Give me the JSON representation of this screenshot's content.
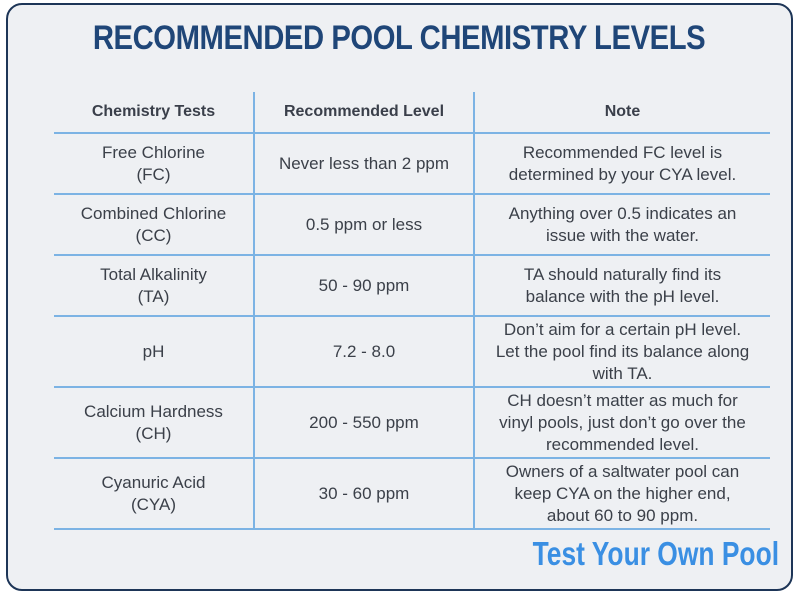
{
  "title": "RECOMMENDED POOL CHEMISTRY LEVELS",
  "columns": [
    "Chemistry Tests",
    "Recommended Level",
    "Note"
  ],
  "rows": [
    {
      "test": [
        "Free Chlorine",
        "(FC)"
      ],
      "level": "Never less than 2 ppm",
      "note": [
        "Recommended FC level is",
        "determined by your CYA level."
      ]
    },
    {
      "test": [
        "Combined Chlorine",
        "(CC)"
      ],
      "level": "0.5 ppm or less",
      "note": [
        "Anything over 0.5 indicates an",
        "issue with the water."
      ]
    },
    {
      "test": [
        "Total Alkalinity",
        "(TA)"
      ],
      "level": "50 - 90 ppm",
      "note": [
        "TA should naturally find its",
        "balance with the pH level."
      ]
    },
    {
      "test": [
        "pH"
      ],
      "level": "7.2 - 8.0",
      "note": [
        "Don’t aim for a certain pH level.",
        "Let the pool find its balance along",
        "with TA."
      ]
    },
    {
      "test": [
        "Calcium Hardness",
        "(CH)"
      ],
      "level": "200 - 550 ppm",
      "note": [
        "CH doesn’t matter as much for",
        "vinyl pools, just don’t go over the",
        "recommended level."
      ]
    },
    {
      "test": [
        "Cyanuric Acid",
        "(CYA)"
      ],
      "level": "30 - 60 ppm",
      "note": [
        "Owners of a saltwater pool can",
        "keep CYA on the higher end,",
        "about 60 to 90 ppm."
      ]
    }
  ],
  "logo": "Test Your Own Pool",
  "colors": {
    "title": "#1f4678",
    "lines": "#7cb3e4",
    "logo": "#3a8fe3",
    "border": "#1d3557"
  }
}
